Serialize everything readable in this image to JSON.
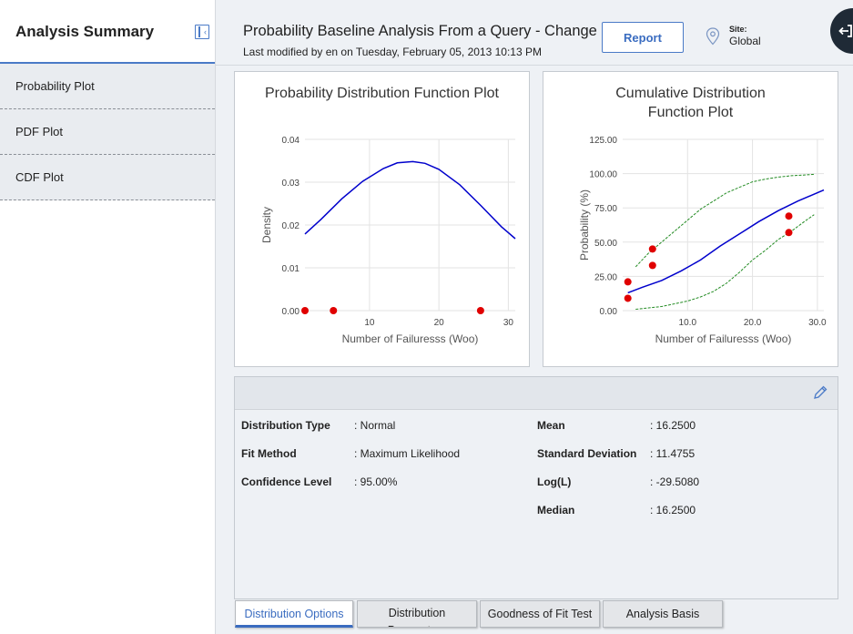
{
  "sidebar": {
    "title": "Analysis Summary",
    "items": [
      {
        "label": "Probability Plot"
      },
      {
        "label": "PDF Plot"
      },
      {
        "label": "CDF Plot"
      }
    ]
  },
  "header": {
    "title": "Probability Baseline Analysis From a Query - Change",
    "modified": "Last modified by en on Tuesday, February 05, 2013 10:13 PM",
    "report_label": "Report",
    "site_label": "Site:",
    "site_value": "Global"
  },
  "chart_data": [
    {
      "type": "line",
      "title": "Probability Distribution Function Plot",
      "xlabel": "Number of Failuresss (Woo)",
      "ylabel": "Density",
      "xlim": [
        0.7,
        31
      ],
      "ylim": [
        0,
        0.04
      ],
      "x_ticks": [
        "10",
        "20",
        "30"
      ],
      "y_ticks": [
        "0.00",
        "0.01",
        "0.02",
        "0.03",
        "0.04"
      ],
      "series": [
        {
          "type": "line",
          "color": "#0000cc",
          "x": [
            0.7,
            3,
            6,
            9,
            12,
            14,
            16.25,
            18,
            20,
            23,
            26,
            29,
            31
          ],
          "y": [
            0.0179,
            0.0213,
            0.0261,
            0.0302,
            0.0332,
            0.0345,
            0.0348,
            0.0344,
            0.033,
            0.0294,
            0.0246,
            0.0196,
            0.0168
          ]
        },
        {
          "type": "scatter",
          "color": "#e00000",
          "x": [
            0.7,
            4.8,
            26
          ],
          "y": [
            0,
            0,
            0
          ]
        }
      ]
    },
    {
      "type": "line",
      "title": "Cumulative Distribution Function Plot",
      "xlabel": "Number of Failuresss (Woo)",
      "ylabel": "Probability (%)",
      "xlim": [
        0,
        31
      ],
      "ylim": [
        0,
        125
      ],
      "x_ticks": [
        "10.0",
        "20.0",
        "30.0"
      ],
      "y_ticks": [
        "0.00",
        "25.00",
        "50.00",
        "75.00",
        "100.00",
        "125.00"
      ],
      "series": [
        {
          "type": "line",
          "color": "#0000cc",
          "x": [
            0.8,
            3,
            6,
            9,
            12,
            15,
            18,
            21,
            24,
            27,
            29,
            31
          ],
          "y": [
            13,
            17,
            22,
            29,
            37,
            47,
            56,
            65,
            73,
            80,
            84,
            88
          ]
        },
        {
          "type": "line",
          "color": "#228b22",
          "dash": true,
          "x": [
            2,
            4,
            6,
            8,
            10,
            12,
            14,
            16,
            18,
            20,
            22,
            24,
            26,
            28,
            29.5
          ],
          "y": [
            32,
            42,
            50,
            58,
            66,
            74,
            80,
            86,
            90,
            94,
            96,
            97.5,
            98.5,
            99,
            99.5
          ]
        },
        {
          "type": "line",
          "color": "#228b22",
          "dash": true,
          "x": [
            2,
            4,
            6,
            8,
            10,
            12,
            14,
            16,
            18,
            20,
            22,
            24,
            26,
            28,
            29.5
          ],
          "y": [
            1,
            2,
            3,
            5,
            7,
            10,
            14,
            20,
            28,
            37,
            44,
            52,
            58,
            65,
            70
          ]
        },
        {
          "type": "scatter",
          "color": "#e00000",
          "x": [
            0.8,
            0.8,
            4.6,
            4.6,
            25.6,
            25.6
          ],
          "y": [
            9,
            21,
            33,
            45,
            57,
            69
          ]
        }
      ]
    }
  ],
  "details": {
    "left": [
      {
        "label": "Distribution Type",
        "value": ": Normal"
      },
      {
        "label": "Fit Method",
        "value": ": Maximum Likelihood"
      },
      {
        "label": "Confidence Level",
        "value": ": 95.00%"
      }
    ],
    "right": [
      {
        "label": "Mean",
        "value": ": 16.2500"
      },
      {
        "label": "Standard Deviation",
        "value": ": 11.4755"
      },
      {
        "label": "Log(L)",
        "value": ": -29.5080"
      },
      {
        "label": "Median",
        "value": ": 16.2500"
      }
    ]
  },
  "tabs": [
    {
      "label": "Distribution Options",
      "active": true
    },
    {
      "label": "Distribution Parameters",
      "active": false
    },
    {
      "label": "Goodness of Fit Test",
      "active": false
    },
    {
      "label": "Analysis Basis",
      "active": false
    }
  ]
}
